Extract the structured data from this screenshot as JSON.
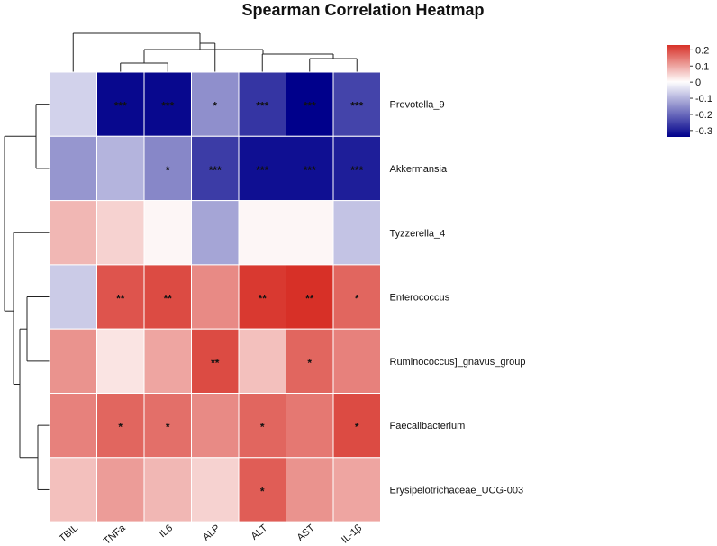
{
  "chart_data": {
    "type": "heatmap",
    "title": "Spearman Correlation Heatmap",
    "columns": [
      "TBIL",
      "TNFa",
      "IL6",
      "ALP",
      "ALT",
      "AST",
      "IL-1β"
    ],
    "rows": [
      "Prevotella_9",
      "Akkermansia",
      "Tyzzerella_4",
      "Enterococcus",
      "Ruminococcus]_gnavus_group",
      "Faecalibacterium",
      "Erysipelotrichaceae_UCG-003"
    ],
    "values": [
      [
        -0.06,
        -0.33,
        -0.33,
        -0.15,
        -0.27,
        -0.34,
        -0.25
      ],
      [
        -0.14,
        -0.1,
        -0.16,
        -0.26,
        -0.32,
        -0.32,
        -0.3
      ],
      [
        0.08,
        0.05,
        0.01,
        -0.12,
        0.01,
        0.01,
        -0.08
      ],
      [
        -0.07,
        0.19,
        0.2,
        0.13,
        0.22,
        0.23,
        0.17
      ],
      [
        0.12,
        0.03,
        0.1,
        0.2,
        0.07,
        0.17,
        0.14
      ],
      [
        0.14,
        0.17,
        0.16,
        0.13,
        0.17,
        0.15,
        0.2
      ],
      [
        0.07,
        0.11,
        0.08,
        0.05,
        0.18,
        0.12,
        0.1
      ]
    ],
    "significance": [
      [
        "",
        "***",
        "***",
        "*",
        "***",
        "***",
        "***"
      ],
      [
        "",
        "",
        "*",
        "***",
        "***",
        "***",
        "***"
      ],
      [
        "",
        "",
        "",
        "",
        "",
        "",
        ""
      ],
      [
        "",
        "**",
        "**",
        "",
        "**",
        "**",
        "*"
      ],
      [
        "",
        "",
        "",
        "**",
        "",
        "*",
        ""
      ],
      [
        "",
        "*",
        "*",
        "",
        "*",
        "",
        "*"
      ],
      [
        "",
        "",
        "",
        "",
        "*",
        "",
        ""
      ]
    ],
    "colorbar": {
      "range": [
        -0.34,
        0.23
      ],
      "ticks": [
        0.2,
        0.1,
        0,
        -0.1,
        -0.2,
        -0.3
      ],
      "tick_labels": [
        "0.2",
        "0.1",
        "0",
        "-0.1",
        "-0.2",
        "-0.3"
      ],
      "colors": {
        "low": "#00008b",
        "mid": "#ffffff",
        "high": "#d73027"
      }
    },
    "dendrogram": {
      "columns": "hierarchical clustering tree above columns",
      "rows": "hierarchical clustering tree left of rows"
    },
    "legend_position": "top-right"
  }
}
